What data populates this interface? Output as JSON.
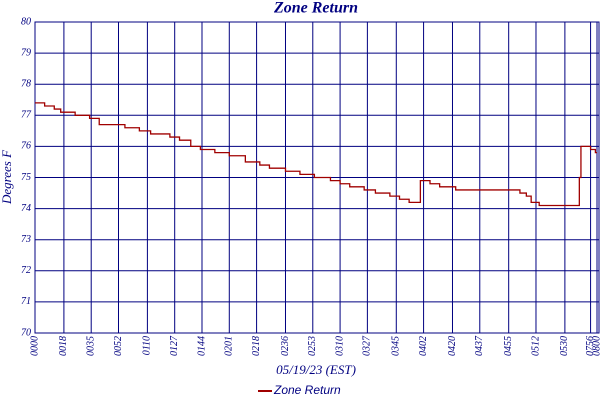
{
  "chart_data": {
    "type": "line",
    "title": "Zone Return",
    "x_label": "05/19/23 (EST)",
    "y_label": "Degrees F",
    "x": [
      0,
      6,
      12,
      16,
      25,
      34,
      40,
      56,
      65,
      72,
      84,
      90,
      97,
      103,
      112,
      121,
      131,
      140,
      146,
      156,
      165,
      174,
      184,
      190,
      196,
      205,
      212,
      221,
      227,
      233,
      237,
      240,
      246,
      252,
      262,
      271,
      283,
      299,
      302,
      306,
      309,
      314,
      327,
      337,
      339,
      340,
      346,
      349,
      350
    ],
    "series": [
      {
        "name": "Zone Return",
        "color": "#a00000",
        "values": [
          77.4,
          77.3,
          77.2,
          77.1,
          77.0,
          76.9,
          76.7,
          76.6,
          76.5,
          76.4,
          76.3,
          76.2,
          76.0,
          75.9,
          75.8,
          75.7,
          75.5,
          75.4,
          75.3,
          75.2,
          75.1,
          75.0,
          74.9,
          74.8,
          74.7,
          74.6,
          74.5,
          74.4,
          74.3,
          74.2,
          74.2,
          74.9,
          74.8,
          74.7,
          74.6,
          74.6,
          74.6,
          74.6,
          74.5,
          74.4,
          74.2,
          74.1,
          74.1,
          74.1,
          75.0,
          76.0,
          75.9,
          75.8,
          75.8
        ]
      }
    ],
    "xlim": [
      0,
      350
    ],
    "xticks": [
      {
        "value": 0,
        "label": "0000"
      },
      {
        "value": 18,
        "label": "0018"
      },
      {
        "value": 35,
        "label": "0035"
      },
      {
        "value": 52,
        "label": "0052"
      },
      {
        "value": 70,
        "label": "0110"
      },
      {
        "value": 87,
        "label": "0127"
      },
      {
        "value": 104,
        "label": "0144"
      },
      {
        "value": 121,
        "label": "0201"
      },
      {
        "value": 138,
        "label": "0218"
      },
      {
        "value": 156,
        "label": "0236"
      },
      {
        "value": 173,
        "label": "0253"
      },
      {
        "value": 190,
        "label": "0310"
      },
      {
        "value": 207,
        "label": "0327"
      },
      {
        "value": 225,
        "label": "0345"
      },
      {
        "value": 242,
        "label": "0402"
      },
      {
        "value": 260,
        "label": "0420"
      },
      {
        "value": 277,
        "label": "0437"
      },
      {
        "value": 295,
        "label": "0455"
      },
      {
        "value": 312,
        "label": "0512"
      },
      {
        "value": 330,
        "label": "0530"
      },
      {
        "value": 346,
        "label": "0756"
      },
      {
        "value": 350,
        "label": "0800"
      }
    ],
    "ylim": [
      70,
      80
    ],
    "yticks": [
      70,
      71,
      72,
      73,
      74,
      75,
      76,
      77,
      78,
      79,
      80
    ],
    "grid": true,
    "legend": "bottom"
  }
}
